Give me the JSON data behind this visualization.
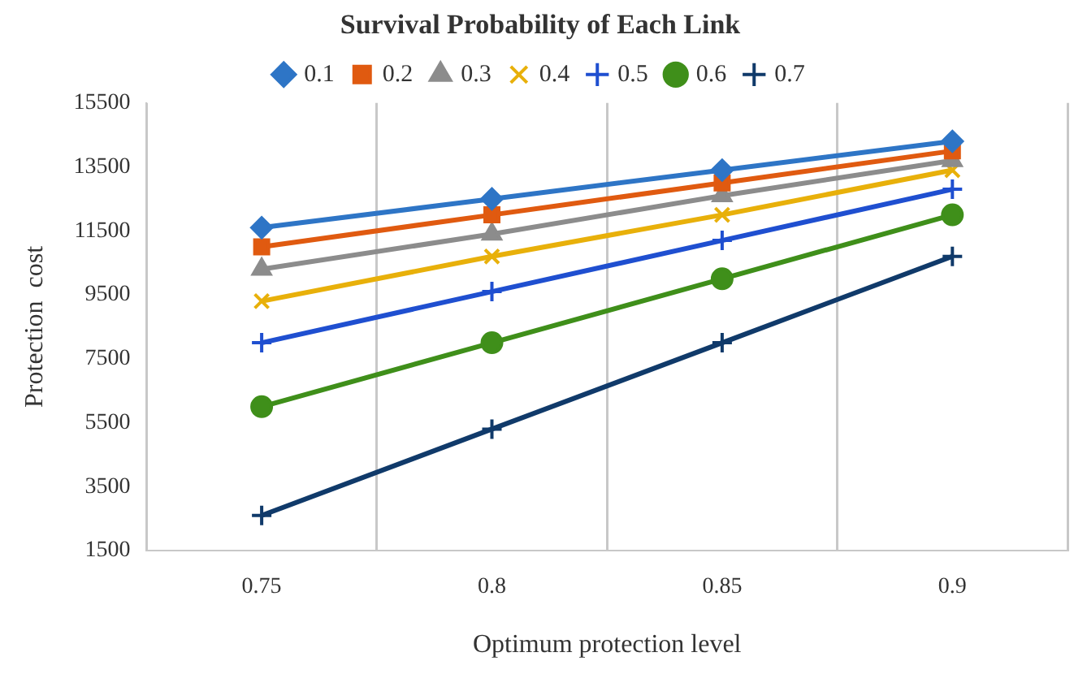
{
  "chart_data": {
    "type": "line",
    "title": "Survival Probability of Each Link",
    "xlabel": "Optimum protection level",
    "ylabel": "Protection  cost",
    "categories": [
      "0.75",
      "0.8",
      "0.85",
      "0.9"
    ],
    "ylim": [
      1500,
      15500
    ],
    "yticks": [
      1500,
      3500,
      5500,
      7500,
      9500,
      11500,
      13500,
      15500
    ],
    "grid": "x",
    "legend": "top",
    "line_style": "solid",
    "series": [
      {
        "name": "0.1",
        "color": "#2e75c6",
        "marker": "diamond",
        "values": [
          11600,
          12500,
          13400,
          14300
        ]
      },
      {
        "name": "0.2",
        "color": "#e05a10",
        "marker": "square",
        "values": [
          11000,
          12000,
          13000,
          14000
        ]
      },
      {
        "name": "0.3",
        "color": "#8c8c8c",
        "marker": "triangle",
        "values": [
          10300,
          11400,
          12600,
          13700
        ]
      },
      {
        "name": "0.4",
        "color": "#e8b00a",
        "marker": "x",
        "values": [
          9300,
          10700,
          12000,
          13400
        ]
      },
      {
        "name": "0.5",
        "color": "#1f4fd0",
        "marker": "cross",
        "values": [
          8000,
          9600,
          11200,
          12800
        ]
      },
      {
        "name": "0.6",
        "color": "#3f8f1a",
        "marker": "circle",
        "values": [
          6000,
          8000,
          10000,
          12000
        ]
      },
      {
        "name": "0.7",
        "color": "#103a6a",
        "marker": "cross",
        "values": [
          2600,
          5300,
          8000,
          10700
        ]
      }
    ]
  }
}
